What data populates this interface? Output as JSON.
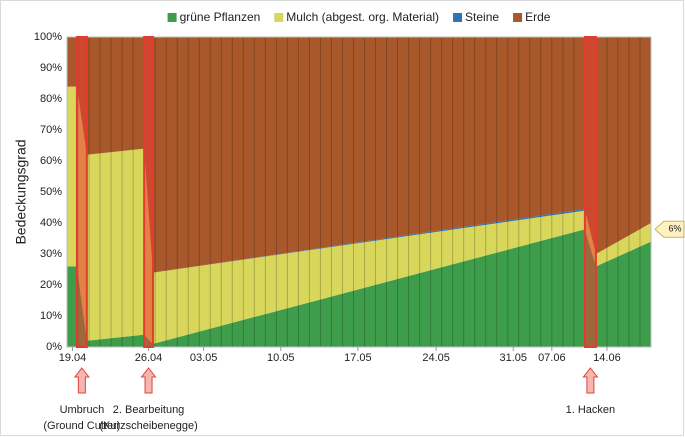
{
  "chart_data": {
    "type": "stacked_area",
    "y_label": "Bedeckungsgrad",
    "x": [
      0,
      0.9,
      1.8,
      7.0,
      7.8,
      47.0,
      48.0,
      53
    ],
    "series": [
      {
        "name": "grüne Pflanzen",
        "color": "#3e9d4b",
        "values": [
          26,
          26,
          2,
          4,
          1,
          38,
          26,
          34
        ]
      },
      {
        "name": "Mulch (abgest. org. Material)",
        "color": "#d8d75c",
        "values": [
          58,
          58,
          60,
          60,
          23,
          6,
          4,
          6
        ]
      },
      {
        "name": "Steine",
        "color": "#2e75b6",
        "values": [
          0,
          0,
          0,
          0,
          0,
          0.5,
          0,
          0
        ]
      },
      {
        "name": "Erde",
        "color": "#a9582b",
        "values": [
          16,
          16,
          38,
          36,
          76,
          55.5,
          70,
          60
        ]
      }
    ],
    "xlim": [
      0,
      53
    ],
    "xticks": [
      {
        "value": 0.5,
        "label": "19.04"
      },
      {
        "value": 7.4,
        "label": "26.04"
      },
      {
        "value": 12.4,
        "label": "03.05"
      },
      {
        "value": 19.4,
        "label": "10.05"
      },
      {
        "value": 26.4,
        "label": "17.05"
      },
      {
        "value": 33.5,
        "label": "24.05"
      },
      {
        "value": 40.5,
        "label": "31.05"
      },
      {
        "value": 44,
        "label": "07.06"
      },
      {
        "value": 49,
        "label": "14.06"
      }
    ],
    "ylim": [
      0,
      100
    ],
    "yticks": [
      {
        "value": 0,
        "label": "0%"
      },
      {
        "value": 10,
        "label": "10%"
      },
      {
        "value": 20,
        "label": "20%"
      },
      {
        "value": 30,
        "label": "30%"
      },
      {
        "value": 40,
        "label": "40%"
      },
      {
        "value": 50,
        "label": "50%"
      },
      {
        "value": 60,
        "label": "60%"
      },
      {
        "value": 70,
        "label": "70%"
      },
      {
        "value": 80,
        "label": "80%"
      },
      {
        "value": 90,
        "label": "90%"
      },
      {
        "value": 100,
        "label": "100%"
      }
    ],
    "legend": "top",
    "events": [
      {
        "x": [
          0.9,
          1.8
        ],
        "label": [
          "Umbruch",
          "(Ground Cutter)"
        ]
      },
      {
        "x": [
          7.0,
          7.8
        ],
        "label": [
          "2. Bearbeitung",
          "(Kurzscheibenegge)"
        ]
      },
      {
        "x": [
          47.0,
          48.0
        ],
        "label": [
          "1. Hacken"
        ]
      }
    ],
    "end_label": {
      "text": "6%",
      "y": 38
    }
  }
}
